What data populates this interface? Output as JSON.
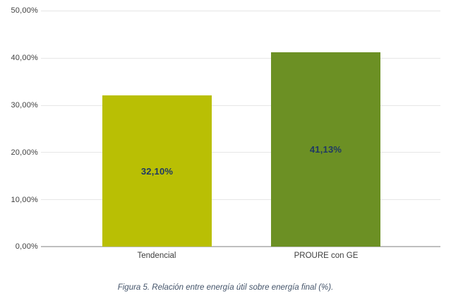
{
  "chart_data": {
    "type": "bar",
    "categories": [
      "Tendencial",
      "PROURE con GE"
    ],
    "values": [
      32.1,
      41.13
    ],
    "value_labels": [
      "32,10%",
      "41,13%"
    ],
    "bar_colors": [
      "#b9bf04",
      "#6c9024"
    ],
    "value_label_color": "#1f3864",
    "title": "",
    "xlabel": "",
    "ylabel": "",
    "ylim": [
      0,
      50
    ],
    "y_tick_labels": [
      "50,00%",
      "40,00%",
      "30,00%",
      "20,00%",
      "10,00%",
      "0,00%"
    ],
    "y_tick_values": [
      50,
      40,
      30,
      20,
      10,
      0
    ],
    "grid": true,
    "legend": false,
    "gridline_color": "#e6e6e6",
    "axis_line_color": "#bfbfbf"
  },
  "caption": "Figura 5. Relación entre energía útil sobre energía final (%)."
}
